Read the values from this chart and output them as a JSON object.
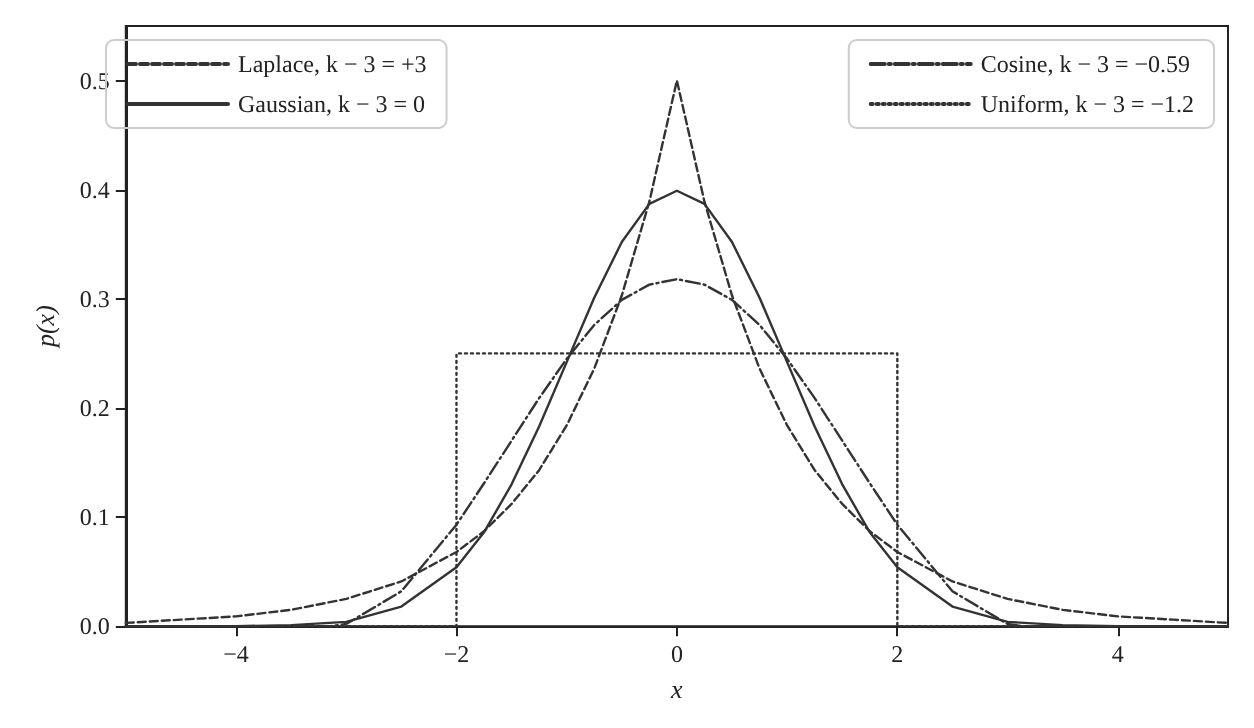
{
  "chart_data": {
    "type": "line",
    "xlabel": "x",
    "ylabel": "p(x)",
    "xlim": [
      -5,
      5
    ],
    "ylim": [
      0,
      0.55
    ],
    "xticks": [
      {
        "value": -4,
        "label": "−4"
      },
      {
        "value": -2,
        "label": "−2"
      },
      0,
      2,
      4
    ],
    "yticks": [
      {
        "value": 0,
        "label": "0.0"
      },
      0.1,
      0.2,
      0.3,
      0.4,
      0.5
    ],
    "grid": false,
    "legend": "top",
    "marker": "none",
    "series": [
      {
        "name": "Laplace, k − 3 = +3",
        "color": "#333333",
        "line_style": "dashed",
        "x": [
          -5,
          -4.5,
          -4,
          -3.5,
          -3,
          -2.5,
          -2,
          -1.75,
          -1.5,
          -1.25,
          -1,
          -0.75,
          -0.5,
          -0.25,
          0,
          0.25,
          0.5,
          0.75,
          1,
          1.25,
          1.5,
          1.75,
          2,
          2.5,
          3,
          3.5,
          4,
          4.5,
          5
        ],
        "values": [
          0.003,
          0.006,
          0.009,
          0.015,
          0.025,
          0.041,
          0.068,
          0.087,
          0.112,
          0.143,
          0.184,
          0.236,
          0.303,
          0.389,
          0.5,
          0.389,
          0.303,
          0.236,
          0.184,
          0.143,
          0.112,
          0.087,
          0.068,
          0.041,
          0.025,
          0.015,
          0.009,
          0.006,
          0.003
        ]
      },
      {
        "name": "Gaussian, k − 3 = 0",
        "color": "#333333",
        "line_style": "solid",
        "x": [
          -5,
          -4.5,
          -4,
          -3.5,
          -3,
          -2.5,
          -2,
          -1.75,
          -1.5,
          -1.25,
          -1,
          -0.75,
          -0.5,
          -0.25,
          0,
          0.25,
          0.5,
          0.75,
          1,
          1.25,
          1.5,
          1.75,
          2,
          2.5,
          3,
          3.5,
          4,
          4.5,
          5
        ],
        "values": [
          0,
          0,
          0,
          0.001,
          0.004,
          0.018,
          0.054,
          0.086,
          0.13,
          0.183,
          0.242,
          0.301,
          0.352,
          0.387,
          0.399,
          0.387,
          0.352,
          0.301,
          0.242,
          0.183,
          0.13,
          0.086,
          0.054,
          0.018,
          0.004,
          0.001,
          0,
          0,
          0
        ]
      },
      {
        "name": "Cosine, k − 3 = −0.59",
        "color": "#333333",
        "line_style": "dashdot",
        "x": [
          -5,
          -3.14,
          -3,
          -2.5,
          -2,
          -1.75,
          -1.5,
          -1.25,
          -1,
          -0.75,
          -0.5,
          -0.25,
          0,
          0.25,
          0.5,
          0.75,
          1,
          1.25,
          1.5,
          1.75,
          2,
          2.5,
          3,
          3.14,
          5
        ],
        "values": [
          0,
          0,
          0.002,
          0.032,
          0.093,
          0.131,
          0.17,
          0.209,
          0.245,
          0.276,
          0.299,
          0.313,
          0.318,
          0.313,
          0.299,
          0.276,
          0.245,
          0.209,
          0.17,
          0.131,
          0.093,
          0.032,
          0.002,
          0,
          0
        ]
      },
      {
        "name": "Uniform, k − 3 = −1.2",
        "color": "#333333",
        "line_style": "dotted",
        "x": [
          -5,
          -2,
          -2,
          2,
          2,
          5
        ],
        "values": [
          0,
          0,
          0.25,
          0.25,
          0,
          0
        ]
      }
    ]
  }
}
